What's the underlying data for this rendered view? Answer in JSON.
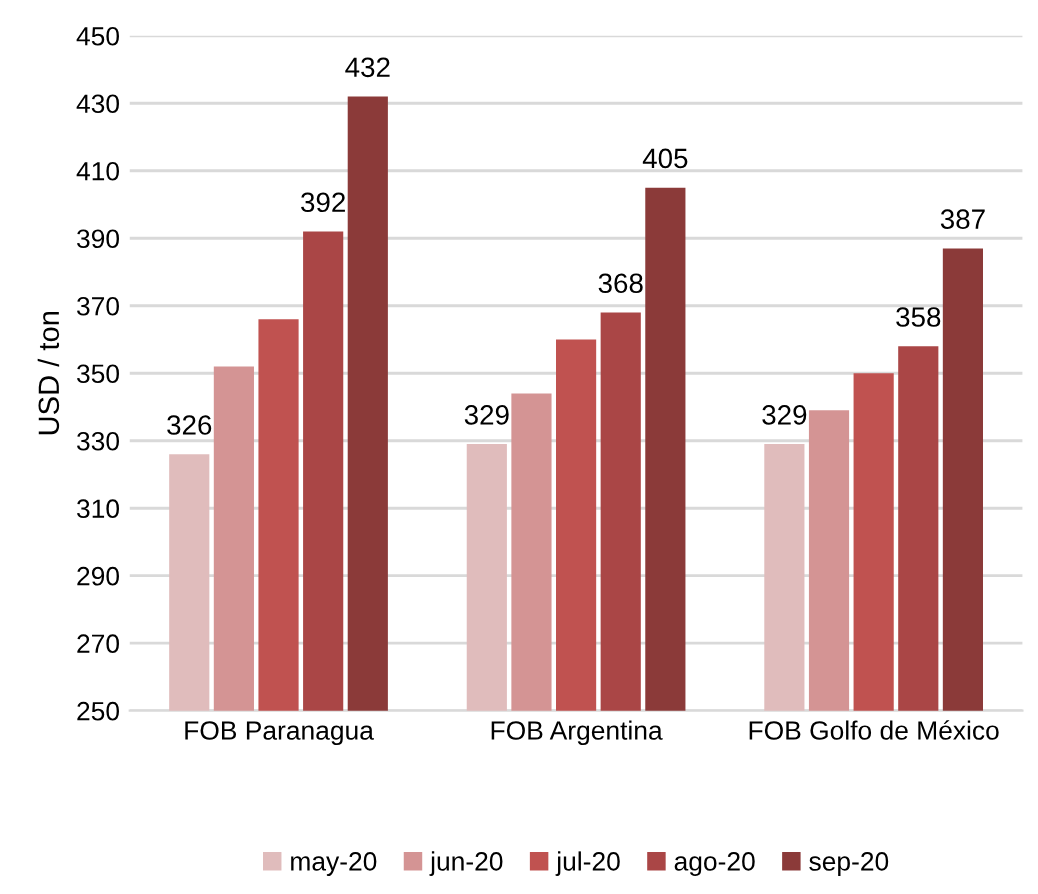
{
  "chart_data": {
    "type": "bar",
    "ylabel": "USD / ton",
    "categories": [
      "FOB Paranagua",
      "FOB Argentina",
      "FOB Golfo de México"
    ],
    "series": [
      {
        "name": "may-20",
        "color": "#e0bcbc",
        "values": [
          326,
          329,
          329
        ],
        "value_labels": [
          "326",
          "329",
          "329"
        ]
      },
      {
        "name": "jun-20",
        "color": "#d49494",
        "values": [
          352,
          344,
          339
        ],
        "value_labels": [
          null,
          null,
          null
        ]
      },
      {
        "name": "jul-20",
        "color": "#c05250",
        "values": [
          366,
          360,
          350
        ],
        "value_labels": [
          null,
          null,
          null
        ]
      },
      {
        "name": "ago-20",
        "color": "#aa4646",
        "values": [
          392,
          368,
          358
        ],
        "value_labels": [
          "392",
          "368",
          "358"
        ]
      },
      {
        "name": "sep-20",
        "color": "#8b3a39",
        "values": [
          432,
          405,
          387
        ],
        "value_labels": [
          "432",
          "405",
          "387"
        ]
      }
    ],
    "ylim": [
      250,
      450
    ],
    "yticks": [
      250,
      270,
      290,
      310,
      330,
      350,
      370,
      390,
      410,
      430,
      450
    ],
    "grid": "y",
    "legend": "bottom"
  }
}
